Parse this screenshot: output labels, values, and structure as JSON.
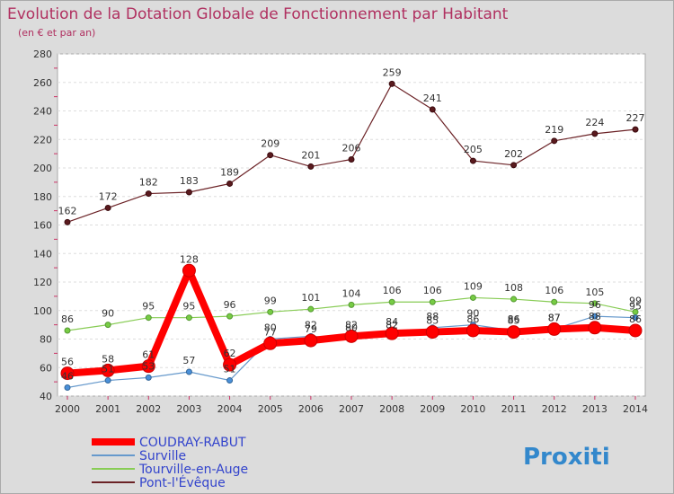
{
  "chart_data": {
    "type": "line",
    "title": "Evolution de la Dotation Globale de Fonctionnement par Habitant",
    "subtitle": "(en € et par an)",
    "xlabel": "",
    "ylabel": "",
    "ylim": [
      40,
      280
    ],
    "yticks": [
      40,
      60,
      80,
      100,
      120,
      140,
      160,
      180,
      200,
      220,
      240,
      260,
      280
    ],
    "grid": true,
    "legend_position": "bottom-left",
    "x": [
      "2000",
      "2001",
      "2002",
      "2003",
      "2004",
      "2005",
      "2006",
      "2007",
      "2008",
      "2009",
      "2010",
      "2011",
      "2012",
      "2013",
      "2014"
    ],
    "series": [
      {
        "name": "COUDRAY-RABUT",
        "color": "#ff0000",
        "values": [
          56,
          58,
          61,
          128,
          62,
          77,
          79,
          82,
          84,
          85,
          86,
          85,
          87,
          88,
          86
        ]
      },
      {
        "name": "Surville",
        "color": "#6699cc",
        "values": [
          46,
          51,
          53,
          57,
          51,
          80,
          82,
          80,
          82,
          88,
          90,
          86,
          87,
          96,
          95
        ]
      },
      {
        "name": "Tourville-en-Auge",
        "color": "#88cc55",
        "values": [
          86,
          90,
          95,
          95,
          96,
          99,
          101,
          104,
          106,
          106,
          109,
          108,
          106,
          105,
          99
        ]
      },
      {
        "name": "Pont-l'Évêque",
        "color": "#6b2226",
        "values": [
          162,
          172,
          182,
          183,
          189,
          209,
          201,
          206,
          259,
          241,
          205,
          202,
          219,
          224,
          227
        ]
      }
    ]
  },
  "logo": {
    "text": "Proxiti"
  }
}
